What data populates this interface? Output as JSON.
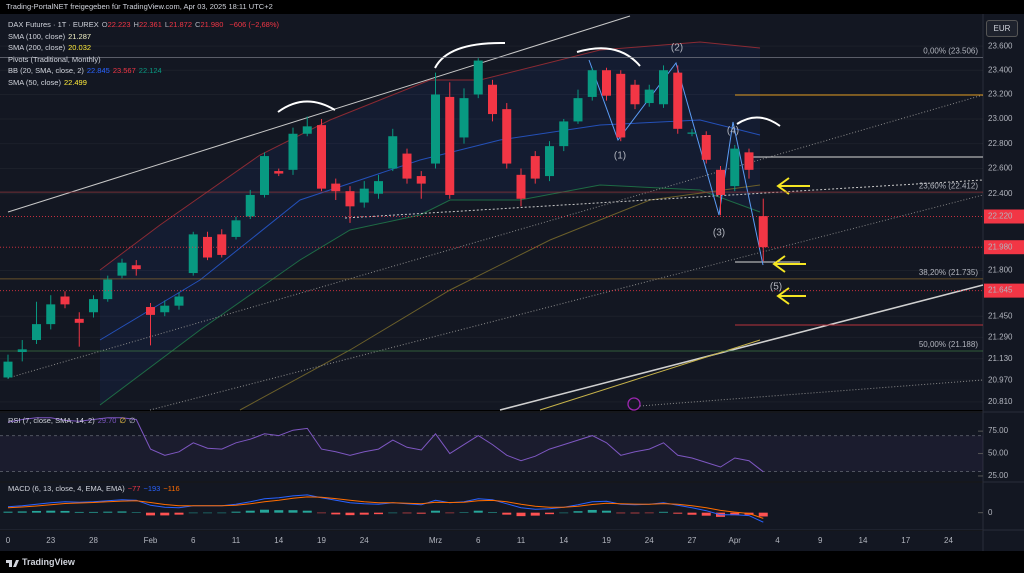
{
  "top_bar": "Trading-PortalNET freigegeben für TradingView.com, Apr 03, 2025 18:11 UTC+2",
  "currency": "EUR",
  "logo": "TradingView",
  "chart_data": [
    {
      "type": "candlestick",
      "legend_title": "DAX Futures · 1T · EUREX",
      "ohlc_legend": [
        {
          "key": "O",
          "text": "22.223"
        },
        {
          "key": "H",
          "text": "22.361"
        },
        {
          "key": "L",
          "text": "21.872"
        },
        {
          "key": "C",
          "text": "21.980"
        }
      ],
      "change": "−606 (−2,68%)",
      "indicators": [
        {
          "name": "SMA (100, close)",
          "values": [
            "21.287"
          ],
          "colors": [
            "#f5f5c8"
          ]
        },
        {
          "name": "SMA (200, close)",
          "values": [
            "20.032"
          ],
          "colors": [
            "#ffeb3b"
          ]
        },
        {
          "name": "Pivots (Traditional, Monthly)"
        },
        {
          "name": "BB (20, SMA, close, 2)",
          "values": [
            "22.845",
            "23.567",
            "22.124"
          ],
          "colors": [
            "#2962ff",
            "#f23645",
            "#089981"
          ]
        },
        {
          "name": "SMA (50, close)",
          "values": [
            "22.499"
          ],
          "colors": [
            "#ffeb3b"
          ]
        }
      ],
      "categories": [
        "0",
        null,
        null,
        "23",
        null,
        null,
        "28",
        null,
        null,
        null,
        "Feb",
        null,
        null,
        "6",
        null,
        null,
        "11",
        null,
        null,
        "14",
        null,
        null,
        "19",
        null,
        null,
        "24",
        null,
        null,
        null,
        null,
        "Mrz",
        null,
        null,
        "6",
        null,
        null,
        "11",
        null,
        null,
        "14",
        null,
        null,
        "19",
        null,
        null,
        "24",
        null,
        null,
        "27",
        null,
        null,
        "Apr",
        null,
        null
      ],
      "future_categories": [
        "4",
        null,
        null,
        "9",
        null,
        null,
        "14",
        null,
        null,
        "17",
        null,
        null,
        "24"
      ],
      "open": [
        20990,
        21180,
        21270,
        21390,
        21600,
        21430,
        21480,
        21580,
        21760,
        21840,
        21520,
        21480,
        21530,
        21780,
        22060,
        22080,
        22060,
        22220,
        22390,
        22580,
        22590,
        22880,
        22950,
        22480,
        22420,
        22330,
        22400,
        22600,
        22720,
        22540,
        22640,
        23180,
        22850,
        23200,
        23280,
        23080,
        22550,
        22700,
        22540,
        22780,
        22980,
        23180,
        23400,
        23370,
        23280,
        23130,
        23120,
        23380,
        22880,
        22870,
        22590,
        22460,
        22730,
        22223
      ],
      "high": [
        21160,
        21270,
        21560,
        21610,
        21640,
        21480,
        21610,
        21760,
        21890,
        21880,
        21550,
        21570,
        21630,
        22100,
        22100,
        22120,
        22220,
        22430,
        22730,
        22600,
        22930,
        23020,
        23000,
        22520,
        22460,
        22500,
        22550,
        22920,
        22760,
        22580,
        23380,
        23300,
        23250,
        23500,
        23320,
        23130,
        22600,
        22740,
        22820,
        23000,
        23240,
        23420,
        23420,
        23400,
        23320,
        23280,
        23440,
        23440,
        22920,
        22900,
        22620,
        22790,
        22760,
        22361
      ],
      "low": [
        20980,
        21110,
        21240,
        21350,
        21510,
        21220,
        21440,
        21560,
        21740,
        21760,
        21230,
        21450,
        21500,
        21760,
        21880,
        21900,
        22040,
        22200,
        22370,
        22540,
        22550,
        22860,
        22420,
        22350,
        22170,
        22290,
        22360,
        22580,
        22480,
        22360,
        22600,
        22360,
        22800,
        23170,
        22980,
        22600,
        22300,
        22480,
        22500,
        22740,
        22960,
        23150,
        23150,
        22820,
        23080,
        23100,
        23090,
        22880,
        22860,
        22640,
        22230,
        22420,
        22520,
        21872
      ],
      "close": [
        21108,
        21200,
        21390,
        21540,
        21540,
        21400,
        21580,
        21730,
        21860,
        21810,
        21460,
        21530,
        21600,
        22080,
        21900,
        21920,
        22190,
        22390,
        22700,
        22560,
        22880,
        22940,
        22440,
        22420,
        22300,
        22440,
        22500,
        22860,
        22520,
        22480,
        23200,
        22390,
        23170,
        23480,
        23040,
        22640,
        22360,
        22520,
        22780,
        22980,
        23170,
        23400,
        23190,
        22850,
        23120,
        23240,
        23400,
        22920,
        22890,
        22670,
        22390,
        22760,
        22590,
        21980
      ],
      "up_color": "#089981",
      "down_color": "#f23645",
      "log_scale": true,
      "ylim": [
        20750,
        23870
      ],
      "yticks": [
        {
          "value": 23600,
          "label": "23.600"
        },
        {
          "value": 23400,
          "label": "23.400"
        },
        {
          "value": 23200,
          "label": "23.200"
        },
        {
          "value": 23000,
          "label": "23.000"
        },
        {
          "value": 22800,
          "label": "22.800"
        },
        {
          "value": 22600,
          "label": "22.600"
        },
        {
          "value": 22400,
          "label": "22.400"
        },
        {
          "value": 21800,
          "label": "21.800"
        },
        {
          "value": 21450,
          "label": "21.450"
        },
        {
          "value": 21290,
          "label": "21.290"
        },
        {
          "value": 21130,
          "label": "21.130"
        },
        {
          "value": 20970,
          "label": "20.970"
        },
        {
          "value": 20810,
          "label": "20.810"
        }
      ],
      "price_markers": [
        {
          "value": 22220,
          "label": "22.220"
        },
        {
          "value": 21980,
          "label": "21.980"
        },
        {
          "value": 21645,
          "label": "21.645"
        }
      ],
      "fib_levels": [
        {
          "value": 23506,
          "label": "0,00% (23.506)",
          "color": "#787b86"
        },
        {
          "value": 22412,
          "label": "23,60% (22.412)",
          "color": "#9b3a3f"
        },
        {
          "value": 21735,
          "label": "38,20% (21.735)",
          "color": "#8d6a2e"
        },
        {
          "value": 21188,
          "label": "50,00% (21.188)",
          "color": "#3f7d46"
        }
      ],
      "wave_labels": [
        "(1)",
        "(2)",
        "(3)",
        "(4)",
        "(5)"
      ]
    },
    {
      "type": "line",
      "title": "RSI (7, close, SMA, 14, 2)",
      "legend_values": [
        "29.70",
        "∅",
        "∅"
      ],
      "legend_colors": [
        "#7e57c2",
        "#f7c948",
        "#b2b5be"
      ],
      "values": [
        85,
        88,
        90,
        90,
        87,
        86,
        88,
        90,
        90,
        88,
        55,
        48,
        52,
        62,
        56,
        55,
        62,
        66,
        72,
        70,
        76,
        78,
        55,
        52,
        48,
        52,
        55,
        65,
        57,
        54,
        72,
        50,
        60,
        70,
        60,
        48,
        42,
        47,
        55,
        60,
        65,
        70,
        62,
        48,
        52,
        55,
        62,
        48,
        45,
        40,
        35,
        45,
        42,
        29.7
      ],
      "color": "#7e57c2",
      "band": [
        30,
        70
      ],
      "ylim": [
        20.5,
        93
      ],
      "yticks": [
        {
          "value": 75,
          "label": "75.00"
        },
        {
          "value": 50,
          "label": "50.00"
        },
        {
          "value": 25,
          "label": "25.00"
        }
      ]
    },
    {
      "type": "macd",
      "title": "MACD (6, 13, close, 4, EMA, EMA)",
      "legend_values": [
        "−77",
        "−193",
        "−116"
      ],
      "legend_colors": [
        "#f23645",
        "#2962ff",
        "#ff6d00"
      ],
      "histogram": [
        20,
        25,
        35,
        40,
        35,
        15,
        15,
        20,
        25,
        10,
        -55,
        -55,
        -40,
        0,
        0,
        0,
        20,
        40,
        60,
        50,
        50,
        40,
        -10,
        -35,
        -50,
        -40,
        -30,
        0,
        -12,
        -20,
        40,
        -6,
        8,
        40,
        12,
        -40,
        -70,
        -60,
        -30,
        0,
        30,
        55,
        40,
        -12,
        -13,
        -2,
        17,
        -20,
        -42,
        -61,
        -85,
        -51,
        -43,
        -77
      ],
      "macd": [
        120,
        140,
        170,
        200,
        220,
        210,
        220,
        240,
        260,
        250,
        150,
        110,
        100,
        140,
        140,
        140,
        170,
        220,
        280,
        300,
        340,
        360,
        300,
        250,
        200,
        180,
        170,
        200,
        180,
        160,
        250,
        200,
        220,
        280,
        260,
        180,
        100,
        70,
        80,
        110,
        160,
        220,
        230,
        170,
        160,
        170,
        200,
        150,
        100,
        40,
        -40,
        -40,
        -60,
        -193
      ],
      "signal": [
        100,
        115,
        135,
        160,
        185,
        195,
        205,
        220,
        235,
        240,
        205,
        165,
        140,
        140,
        140,
        140,
        150,
        180,
        220,
        250,
        290,
        320,
        310,
        285,
        250,
        220,
        200,
        200,
        192,
        180,
        210,
        206,
        212,
        240,
        248,
        220,
        170,
        130,
        110,
        110,
        130,
        165,
        190,
        182,
        173,
        172,
        183,
        170,
        142,
        101,
        45,
        11,
        -17,
        -116
      ],
      "histogram_up": "#26a69a",
      "histogram_down": "#ff5252",
      "macd_color": "#2962ff",
      "signal_color": "#ff6d00",
      "ylim": [
        -310,
        580
      ],
      "yticks": [
        0
      ]
    }
  ]
}
